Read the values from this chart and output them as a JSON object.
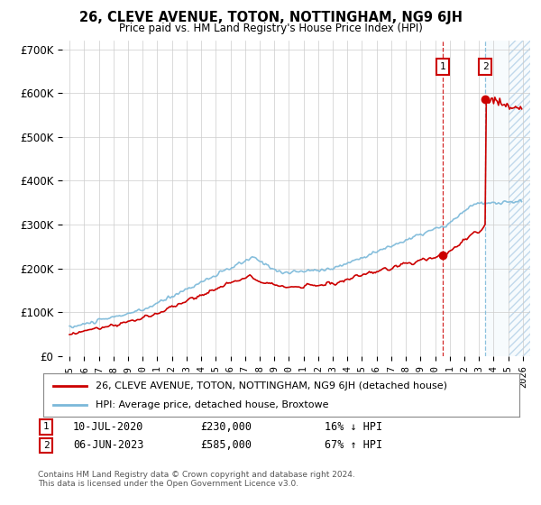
{
  "title": "26, CLEVE AVENUE, TOTON, NOTTINGHAM, NG9 6JH",
  "subtitle": "Price paid vs. HM Land Registry's House Price Index (HPI)",
  "legend_line1": "26, CLEVE AVENUE, TOTON, NOTTINGHAM, NG9 6JH (detached house)",
  "legend_line2": "HPI: Average price, detached house, Broxtowe",
  "annotation1_date": "10-JUL-2020",
  "annotation1_price": "£230,000",
  "annotation1_hpi": "16% ↓ HPI",
  "annotation2_date": "06-JUN-2023",
  "annotation2_price": "£585,000",
  "annotation2_hpi": "67% ↑ HPI",
  "footnote": "Contains HM Land Registry data © Crown copyright and database right 2024.\nThis data is licensed under the Open Government Licence v3.0.",
  "hpi_color": "#7ab8d9",
  "price_color": "#cc0000",
  "background_color": "#ffffff",
  "grid_color": "#cccccc",
  "ylim": [
    0,
    720000
  ],
  "yticks": [
    0,
    100000,
    200000,
    300000,
    400000,
    500000,
    600000,
    700000
  ],
  "ytick_labels": [
    "£0",
    "£100K",
    "£200K",
    "£300K",
    "£400K",
    "£500K",
    "£600K",
    "£700K"
  ],
  "sale1_year": 2020.53,
  "sale1_value": 230000,
  "sale2_year": 2023.43,
  "sale2_value": 585000
}
